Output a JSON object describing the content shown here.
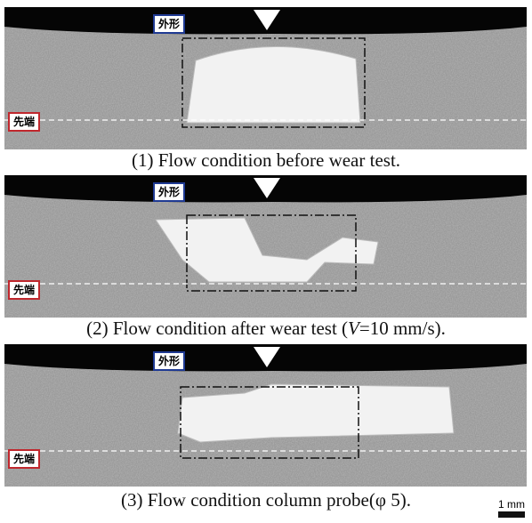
{
  "panels": [
    {
      "outline_label": "外形",
      "tip_label": "先端",
      "caption": [
        "(1) Flow condition before wear test."
      ]
    },
    {
      "outline_label": "外形",
      "tip_label": "先端",
      "caption": [
        "(2) Flow condition after wear test (",
        "V",
        "=10 mm/s)."
      ]
    },
    {
      "outline_label": "外形",
      "tip_label": "先端",
      "caption": [
        "(3) Flow condition column probe(φ 5)."
      ]
    }
  ],
  "scale_bar": "1 mm"
}
